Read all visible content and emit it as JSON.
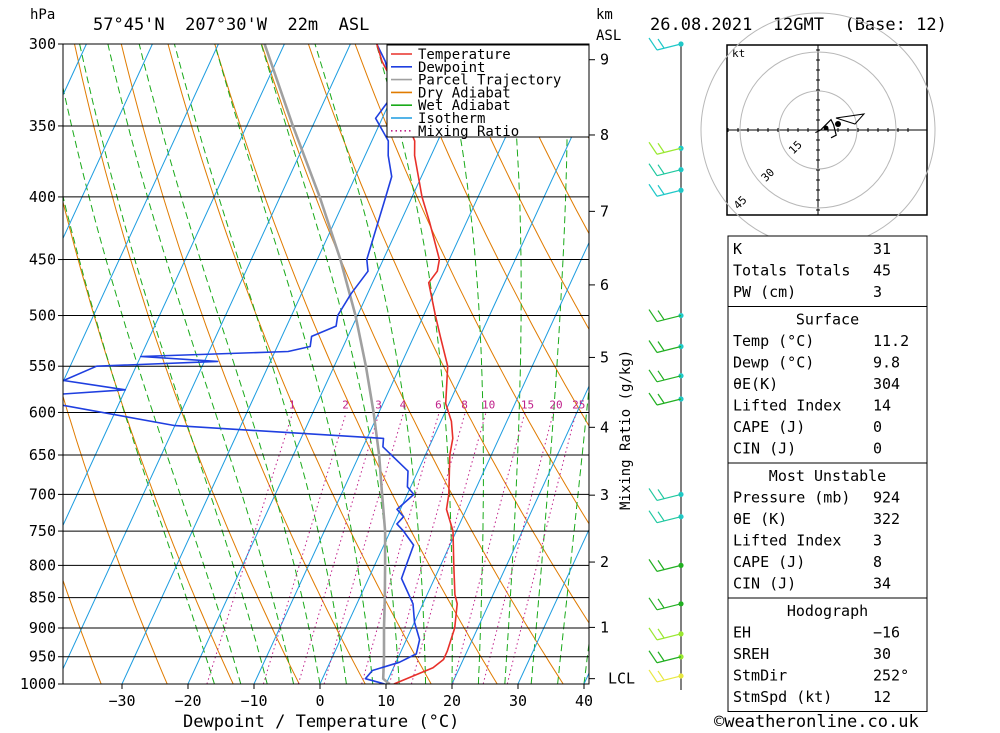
{
  "header": {
    "location": "57°45'N  207°30'W  22m  ASL",
    "datetime": "26.08.2021  12GMT  (Base: 12)",
    "y_unit_left": "hPa",
    "y_unit_right_1": "km",
    "y_unit_right_2": "ASL"
  },
  "footer": {
    "credit": "©weatheronline.co.uk"
  },
  "colors": {
    "temperature": "#e8302a",
    "dewpoint": "#1f3fe0",
    "parcel": "#a0a0a0",
    "dry_adiabat": "#e07b00",
    "wet_adiabat": "#1aaa1a",
    "isotherm": "#1c9ce0",
    "mixing_ratio": "#c0208a"
  },
  "legend": [
    {
      "label": "Temperature",
      "key": "temperature",
      "style": "solid"
    },
    {
      "label": "Dewpoint",
      "key": "dewpoint",
      "style": "solid"
    },
    {
      "label": "Parcel Trajectory",
      "key": "parcel",
      "style": "solid"
    },
    {
      "label": "Dry Adiabat",
      "key": "dry_adiabat",
      "style": "solid"
    },
    {
      "label": "Wet Adiabat",
      "key": "wet_adiabat",
      "style": "solid"
    },
    {
      "label": "Isotherm",
      "key": "isotherm",
      "style": "solid"
    },
    {
      "label": "Mixing Ratio",
      "key": "mixing_ratio",
      "style": "dotted"
    }
  ],
  "chart_data": {
    "type": "line",
    "subtype": "skew-T log-P sounding",
    "xlabel": "Dewpoint / Temperature (°C)",
    "ylabel_right": "Mixing Ratio (g/kg)",
    "x_ticks": [
      -30,
      -20,
      -10,
      0,
      10,
      20,
      30,
      40
    ],
    "xlim": [
      -40,
      40
    ],
    "p_ticks": [
      300,
      350,
      400,
      450,
      500,
      550,
      600,
      650,
      700,
      750,
      800,
      850,
      900,
      950,
      1000
    ],
    "ylim_hpa": [
      1000,
      300
    ],
    "km_ticks": [
      {
        "label": "9",
        "p": 309
      },
      {
        "label": "8",
        "p": 356
      },
      {
        "label": "7",
        "p": 411
      },
      {
        "label": "6",
        "p": 472
      },
      {
        "label": "5",
        "p": 541
      },
      {
        "label": "4",
        "p": 617
      },
      {
        "label": "3",
        "p": 701
      },
      {
        "label": "2",
        "p": 795
      },
      {
        "label": "1",
        "p": 899
      },
      {
        "label": "LCL",
        "p": 990
      }
    ],
    "mixing_ratio_labels": [
      "1",
      "2",
      "3",
      "4",
      "6",
      "8",
      "10",
      "15",
      "20",
      "25"
    ],
    "series": [
      {
        "name": "Temperature",
        "key": "temperature",
        "points": [
          [
            1000,
            11.2
          ],
          [
            970,
            16.0
          ],
          [
            955,
            17.0
          ],
          [
            940,
            17.0
          ],
          [
            900,
            16.5
          ],
          [
            860,
            15.2
          ],
          [
            845,
            14.2
          ],
          [
            800,
            12.0
          ],
          [
            750,
            9.5
          ],
          [
            720,
            7.0
          ],
          [
            700,
            6.3
          ],
          [
            650,
            3.7
          ],
          [
            630,
            3.0
          ],
          [
            610,
            1.6
          ],
          [
            590,
            -0.5
          ],
          [
            550,
            -2.8
          ],
          [
            520,
            -6.0
          ],
          [
            500,
            -8.2
          ],
          [
            470,
            -11.5
          ],
          [
            460,
            -11.0
          ],
          [
            450,
            -11.5
          ],
          [
            420,
            -15.5
          ],
          [
            400,
            -18.5
          ],
          [
            370,
            -22.5
          ],
          [
            360,
            -23.5
          ],
          [
            350,
            -25.5
          ],
          [
            330,
            -29.0
          ],
          [
            310,
            -34.0
          ],
          [
            300,
            -36.0
          ]
        ]
      },
      {
        "name": "Dewpoint",
        "key": "dewpoint",
        "points": [
          [
            1000,
            9.8
          ],
          [
            990,
            6.5
          ],
          [
            975,
            7.0
          ],
          [
            960,
            10.5
          ],
          [
            945,
            12.5
          ],
          [
            920,
            12.0
          ],
          [
            890,
            10.0
          ],
          [
            860,
            8.5
          ],
          [
            820,
            5.0
          ],
          [
            800,
            4.8
          ],
          [
            770,
            4.5
          ],
          [
            750,
            2.0
          ],
          [
            740,
            0.5
          ],
          [
            730,
            1.0
          ],
          [
            720,
            -0.5
          ],
          [
            700,
            1.0
          ],
          [
            690,
            -0.5
          ],
          [
            670,
            -1.5
          ],
          [
            640,
            -7.0
          ],
          [
            630,
            -7.5
          ],
          [
            615,
            -40.0
          ],
          [
            590,
            -60.0
          ],
          [
            580,
            -60.0
          ],
          [
            575,
            -50.0
          ],
          [
            565,
            -60.0
          ],
          [
            550,
            -56.0
          ],
          [
            545,
            -38.0
          ],
          [
            540,
            -50.0
          ],
          [
            535,
            -28.0
          ],
          [
            530,
            -25.0
          ],
          [
            520,
            -25.5
          ],
          [
            510,
            -22.5
          ],
          [
            500,
            -23.0
          ],
          [
            480,
            -22.5
          ],
          [
            460,
            -21.5
          ],
          [
            450,
            -22.5
          ],
          [
            400,
            -24.0
          ],
          [
            385,
            -24.5
          ],
          [
            370,
            -26.5
          ],
          [
            360,
            -27.5
          ],
          [
            345,
            -31.0
          ],
          [
            330,
            -30.0
          ],
          [
            310,
            -33.5
          ],
          [
            300,
            -36.0
          ]
        ]
      },
      {
        "name": "Parcel Trajectory",
        "key": "parcel",
        "points": [
          [
            1000,
            10.5
          ],
          [
            990,
            9.2
          ],
          [
            950,
            7.8
          ],
          [
            900,
            5.8
          ],
          [
            850,
            3.8
          ],
          [
            800,
            1.6
          ],
          [
            750,
            -0.8
          ],
          [
            700,
            -3.8
          ],
          [
            650,
            -7.0
          ],
          [
            600,
            -10.8
          ],
          [
            550,
            -15.2
          ],
          [
            500,
            -20.3
          ],
          [
            450,
            -26.5
          ],
          [
            400,
            -34.0
          ],
          [
            350,
            -43.0
          ],
          [
            300,
            -53.0
          ]
        ]
      }
    ],
    "hodograph": {
      "unit": "kt",
      "ring_labels": [
        "15",
        "30",
        "45"
      ],
      "ring_speeds": [
        15,
        30,
        45
      ],
      "trace": [
        [
          -1,
          -1
        ],
        [
          1,
          0
        ],
        [
          3,
          2
        ],
        [
          5,
          4
        ],
        [
          6,
          2
        ],
        [
          7,
          -2
        ],
        [
          5,
          -3
        ]
      ]
    },
    "wind_barbs": [
      {
        "p": 300,
        "color": "#20c8c8",
        "shaft": "#20c8c8"
      },
      {
        "p": 365,
        "color": "#9ae830",
        "shaft": "#20c8c8"
      },
      {
        "p": 380,
        "color": "#20c8a0",
        "shaft": "#20c8c8"
      },
      {
        "p": 395,
        "color": "#20c8c8",
        "shaft": "#20c8c8"
      },
      {
        "p": 500,
        "color": "#22b022",
        "shaft": "#20c8c8"
      },
      {
        "p": 530,
        "color": "#22b022",
        "shaft": "#20c8c8"
      },
      {
        "p": 560,
        "color": "#22b022",
        "shaft": "#20c8c8"
      },
      {
        "p": 585,
        "color": "#22b022",
        "shaft": "#20c8c8"
      },
      {
        "p": 700,
        "color": "#20c8a0",
        "shaft": "#20c8c8"
      },
      {
        "p": 730,
        "color": "#20c8a0",
        "shaft": "#20c8c8"
      },
      {
        "p": 800,
        "color": "#22b022",
        "shaft": "#22b022"
      },
      {
        "p": 860,
        "color": "#22b022",
        "shaft": "#22b022"
      },
      {
        "p": 910,
        "color": "#9ae830",
        "shaft": "#9ae830"
      },
      {
        "p": 950,
        "color": "#22b022",
        "shaft": "#9ae830"
      },
      {
        "p": 985,
        "color": "#e8e840",
        "shaft": "#e8e840"
      }
    ]
  },
  "indices": {
    "rows": [
      {
        "label": "K",
        "value": "31"
      },
      {
        "label": "Totals Totals",
        "value": "45"
      },
      {
        "label": "PW (cm)",
        "value": "3"
      }
    ]
  },
  "surface": {
    "title": "Surface",
    "rows": [
      {
        "label": "Temp (°C)",
        "value": "11.2"
      },
      {
        "label": "Dewp (°C)",
        "value": "9.8"
      },
      {
        "label": "θE(K)",
        "value": "304"
      },
      {
        "label": "Lifted Index",
        "value": "14"
      },
      {
        "label": "CAPE (J)",
        "value": "0"
      },
      {
        "label": "CIN (J)",
        "value": "0"
      }
    ]
  },
  "most_unstable": {
    "title": "Most Unstable",
    "rows": [
      {
        "label": "Pressure (mb)",
        "value": "924"
      },
      {
        "label": "θE (K)",
        "value": "322"
      },
      {
        "label": "Lifted Index",
        "value": "3"
      },
      {
        "label": "CAPE (J)",
        "value": "8"
      },
      {
        "label": "CIN (J)",
        "value": "34"
      }
    ]
  },
  "hodograph_table": {
    "title": "Hodograph",
    "rows": [
      {
        "label": "EH",
        "value": "-16"
      },
      {
        "label": "SREH",
        "value": "30"
      },
      {
        "label": "StmDir",
        "value": "252°"
      },
      {
        "label": "StmSpd (kt)",
        "value": "12"
      }
    ]
  }
}
